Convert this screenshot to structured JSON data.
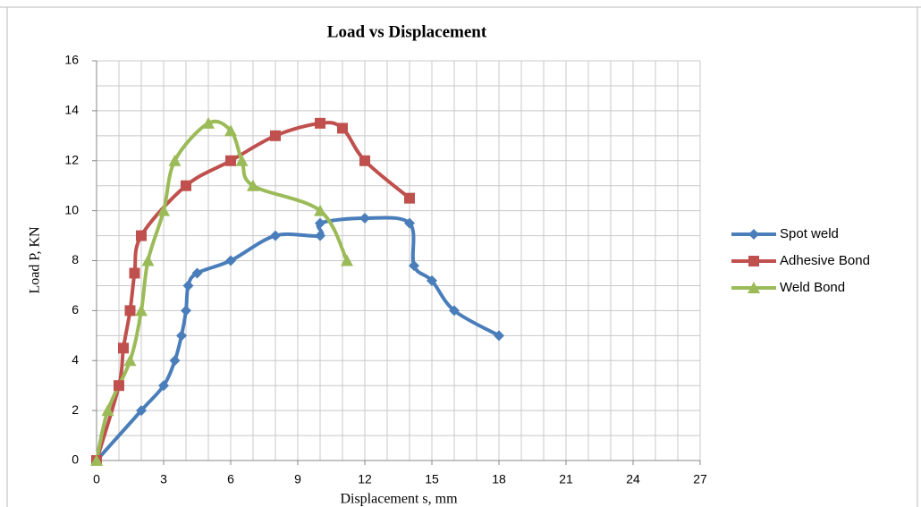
{
  "chart_data": {
    "type": "scatter-smooth",
    "title": "Load vs Displacement",
    "x_label": "Displacement s, mm",
    "y_label": "Load P, KN",
    "xlim": [
      0,
      27
    ],
    "ylim": [
      0,
      16
    ],
    "xticks": [
      0,
      3,
      6,
      9,
      12,
      15,
      18,
      21,
      24,
      27
    ],
    "yticks": [
      0,
      2,
      4,
      6,
      8,
      10,
      12,
      14,
      16
    ],
    "x_gridlines": [
      0,
      1,
      2,
      3,
      4,
      5,
      6,
      7,
      8,
      9,
      10,
      11,
      12,
      13,
      14,
      15,
      16,
      17,
      18,
      19,
      20,
      21,
      22,
      23,
      24,
      25,
      26,
      27
    ],
    "y_gridlines": [
      0,
      1,
      2,
      3,
      4,
      5,
      6,
      7,
      8,
      9,
      10,
      11,
      12,
      13,
      14,
      15,
      16
    ],
    "legend": "right",
    "series": [
      {
        "name": "Spot weld",
        "color": "#4a7ebb",
        "marker": "diamond",
        "x": [
          0,
          2,
          3,
          3.5,
          3.8,
          4,
          4.1,
          4.5,
          6,
          8,
          10,
          10,
          12,
          14,
          14.2,
          15,
          16,
          18
        ],
        "values": [
          0,
          2,
          3,
          4,
          5,
          6,
          7,
          7.5,
          8,
          9,
          9,
          9.5,
          9.7,
          9.5,
          7.8,
          7.2,
          6,
          5
        ]
      },
      {
        "name": "Adhesive Bond",
        "color": "#c0504d",
        "marker": "square",
        "x": [
          0,
          1,
          1.2,
          1.5,
          1.7,
          2,
          4,
          6,
          8,
          10,
          11,
          12,
          14
        ],
        "values": [
          0,
          3,
          4.5,
          6,
          7.5,
          9,
          11,
          12,
          13,
          13.5,
          13.3,
          12,
          10.5
        ]
      },
      {
        "name": "Weld Bond",
        "color": "#9bbb59",
        "marker": "triangle",
        "x": [
          0,
          0.5,
          1.5,
          2,
          2.3,
          3,
          3.5,
          5,
          6,
          6.5,
          7,
          10,
          11.2
        ],
        "values": [
          0,
          2,
          4,
          6,
          8,
          10,
          12,
          13.5,
          13.2,
          12,
          11,
          10,
          8
        ]
      }
    ]
  }
}
